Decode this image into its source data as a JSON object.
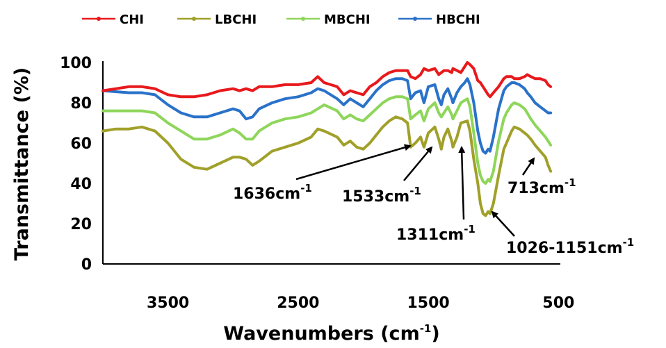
{
  "chart_data": {
    "type": "line",
    "xlabel": "Wavenumbers (cm",
    "xlabel_sup": "-1",
    "xlabel_tail": ")",
    "ylabel": "Transmittance (%)",
    "xlim": [
      4000,
      550
    ],
    "ylim": [
      0,
      100
    ],
    "x_reversed": true,
    "grid": false,
    "legend_position": "top",
    "x_ticks": [
      3500,
      2500,
      1500,
      500
    ],
    "y_ticks": [
      0,
      20,
      40,
      60,
      80,
      100
    ],
    "series": [
      {
        "name": "CHI",
        "color": "#e8191c",
        "x": [
          4000,
          3800,
          3700,
          3600,
          3500,
          3400,
          3300,
          3200,
          3100,
          3000,
          2950,
          2900,
          2850,
          2800,
          2700,
          2600,
          2500,
          2400,
          2350,
          2300,
          2250,
          2200,
          2150,
          2100,
          2050,
          2000,
          1950,
          1900,
          1850,
          1800,
          1750,
          1700,
          1660,
          1636,
          1600,
          1560,
          1533,
          1500,
          1450,
          1420,
          1400,
          1380,
          1350,
          1320,
          1311,
          1280,
          1250,
          1220,
          1200,
          1180,
          1151,
          1120,
          1100,
          1080,
          1060,
          1040,
          1026,
          1000,
          960,
          920,
          900,
          880,
          860,
          840,
          800,
          760,
          740,
          713,
          680,
          640,
          600,
          580,
          560
        ],
        "y": [
          86,
          88,
          88,
          87,
          84,
          83,
          83,
          84,
          86,
          87,
          86,
          87,
          86,
          88,
          88,
          89,
          89,
          90,
          93,
          90,
          89,
          88,
          84,
          86,
          85,
          84,
          88,
          90,
          93,
          95,
          96,
          96,
          96,
          93,
          92,
          94,
          97,
          96,
          97,
          94,
          95,
          96,
          96,
          95,
          97,
          96,
          95,
          98,
          100,
          99,
          97,
          91,
          90,
          88,
          86,
          84,
          83,
          85,
          88,
          92,
          93,
          93,
          93,
          92,
          92,
          93,
          94,
          93,
          92,
          92,
          91,
          89,
          88
        ]
      },
      {
        "name": "LBCHI",
        "color": "#a0a02a",
        "x": [
          4000,
          3900,
          3800,
          3700,
          3600,
          3500,
          3400,
          3300,
          3200,
          3100,
          3000,
          2950,
          2900,
          2850,
          2800,
          2700,
          2600,
          2500,
          2400,
          2350,
          2300,
          2200,
          2150,
          2100,
          2050,
          2000,
          1950,
          1900,
          1850,
          1800,
          1750,
          1700,
          1660,
          1636,
          1600,
          1560,
          1533,
          1500,
          1450,
          1420,
          1400,
          1380,
          1350,
          1320,
          1311,
          1280,
          1250,
          1200,
          1180,
          1151,
          1120,
          1100,
          1080,
          1060,
          1040,
          1026,
          1000,
          960,
          920,
          900,
          880,
          860,
          840,
          800,
          760,
          740,
          713,
          680,
          640,
          600,
          580,
          560
        ],
        "y": [
          66,
          67,
          67,
          68,
          66,
          60,
          52,
          48,
          47,
          50,
          53,
          53,
          52,
          49,
          51,
          56,
          58,
          60,
          63,
          67,
          66,
          63,
          59,
          61,
          58,
          57,
          60,
          64,
          68,
          71,
          73,
          72,
          70,
          58,
          60,
          63,
          58,
          65,
          68,
          62,
          57,
          63,
          67,
          61,
          58,
          63,
          70,
          71,
          66,
          52,
          40,
          30,
          25,
          24,
          26,
          25,
          30,
          44,
          57,
          60,
          63,
          66,
          68,
          67,
          65,
          64,
          62,
          59,
          56,
          53,
          49,
          46
        ]
      },
      {
        "name": "MBCHI",
        "color": "#8ed65a",
        "x": [
          4000,
          3800,
          3700,
          3600,
          3500,
          3400,
          3300,
          3200,
          3100,
          3000,
          2950,
          2900,
          2850,
          2800,
          2700,
          2600,
          2500,
          2400,
          2350,
          2300,
          2200,
          2150,
          2100,
          2050,
          2000,
          1950,
          1900,
          1850,
          1800,
          1750,
          1700,
          1660,
          1636,
          1600,
          1560,
          1533,
          1500,
          1450,
          1420,
          1400,
          1380,
          1350,
          1320,
          1311,
          1280,
          1250,
          1200,
          1180,
          1151,
          1120,
          1100,
          1080,
          1060,
          1040,
          1026,
          1000,
          960,
          920,
          900,
          880,
          860,
          840,
          800,
          760,
          740,
          713,
          680,
          640,
          600,
          580,
          560
        ],
        "y": [
          76,
          76,
          76,
          75,
          70,
          66,
          62,
          62,
          64,
          67,
          65,
          62,
          62,
          66,
          70,
          72,
          73,
          75,
          77,
          79,
          76,
          72,
          74,
          72,
          71,
          74,
          77,
          80,
          82,
          83,
          83,
          82,
          72,
          74,
          76,
          71,
          77,
          80,
          75,
          73,
          75,
          78,
          74,
          72,
          76,
          80,
          82,
          78,
          65,
          50,
          44,
          41,
          40,
          42,
          41,
          46,
          61,
          72,
          75,
          77,
          79,
          80,
          79,
          77,
          75,
          72,
          69,
          66,
          63,
          61,
          59
        ]
      },
      {
        "name": "HBCHI",
        "color": "#2a72c9",
        "x": [
          4000,
          3800,
          3700,
          3600,
          3500,
          3400,
          3300,
          3200,
          3100,
          3000,
          2950,
          2900,
          2850,
          2800,
          2700,
          2600,
          2500,
          2400,
          2350,
          2300,
          2250,
          2200,
          2150,
          2100,
          2050,
          2000,
          1950,
          1900,
          1850,
          1800,
          1750,
          1700,
          1660,
          1636,
          1600,
          1560,
          1533,
          1500,
          1450,
          1420,
          1400,
          1380,
          1350,
          1320,
          1311,
          1280,
          1250,
          1220,
          1200,
          1180,
          1151,
          1120,
          1100,
          1080,
          1060,
          1040,
          1026,
          1000,
          960,
          920,
          900,
          880,
          860,
          840,
          800,
          760,
          740,
          713,
          680,
          640,
          600,
          580,
          560
        ],
        "y": [
          86,
          85,
          85,
          84,
          79,
          75,
          73,
          73,
          75,
          77,
          76,
          72,
          73,
          77,
          80,
          82,
          83,
          85,
          87,
          86,
          84,
          82,
          79,
          82,
          80,
          78,
          82,
          86,
          89,
          91,
          92,
          92,
          91,
          82,
          85,
          86,
          80,
          88,
          89,
          82,
          79,
          84,
          87,
          82,
          80,
          85,
          88,
          90,
          92,
          89,
          80,
          66,
          60,
          56,
          55,
          57,
          56,
          63,
          77,
          86,
          88,
          89,
          90,
          90,
          89,
          87,
          85,
          83,
          80,
          78,
          76,
          75,
          75
        ]
      }
    ],
    "annotations": [
      {
        "label": "1636cm",
        "sup": "-1"
      },
      {
        "label": "1533cm",
        "sup": "-1"
      },
      {
        "label": "1311cm",
        "sup": "-1"
      },
      {
        "label": "1026-1151cm",
        "sup": "-1"
      },
      {
        "label": "713cm",
        "sup": "-1"
      }
    ]
  }
}
